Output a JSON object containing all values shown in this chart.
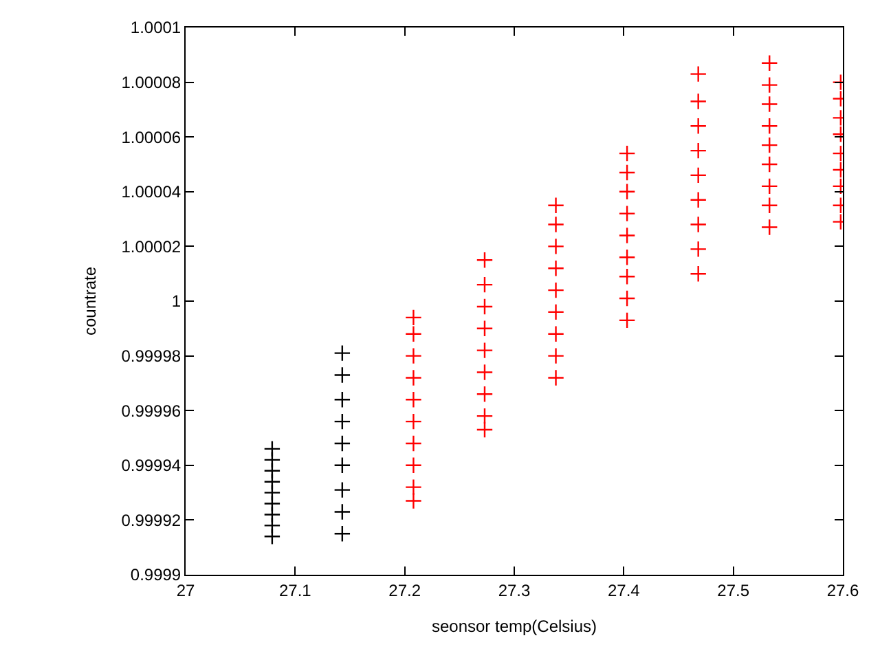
{
  "chart_data": {
    "type": "scatter",
    "xlabel": "seonsor temp(Celsius)",
    "ylabel": "countrate",
    "xlim": [
      27,
      27.6
    ],
    "xticks": [
      27,
      27.1,
      27.2,
      27.3,
      27.4,
      27.5,
      27.6
    ],
    "ylim": [
      0.9999,
      1.0001
    ],
    "yticks": [
      0.9999,
      0.99992,
      0.99994,
      0.99996,
      0.99998,
      1,
      1.00002,
      1.00004,
      1.00006,
      1.00008,
      1.0001
    ],
    "marker": "cross",
    "series": [
      {
        "color": "#000000",
        "x": [
          27.079,
          27.079,
          27.079,
          27.079,
          27.079,
          27.079,
          27.079,
          27.079,
          27.079,
          27.143,
          27.143,
          27.143,
          27.143,
          27.143,
          27.143,
          27.143,
          27.143,
          27.143
        ],
        "values": [
          0.999914,
          0.999918,
          0.999922,
          0.999926,
          0.99993,
          0.999934,
          0.999938,
          0.999942,
          0.999946,
          0.999915,
          0.999923,
          0.999931,
          0.99994,
          0.999948,
          0.999956,
          0.999964,
          0.999973,
          0.999981
        ]
      },
      {
        "color": "#ff0000",
        "x": [
          27.208,
          27.208,
          27.208,
          27.208,
          27.208,
          27.208,
          27.208,
          27.208,
          27.208,
          27.208,
          27.273,
          27.273,
          27.273,
          27.273,
          27.273,
          27.273,
          27.273,
          27.273,
          27.273,
          27.338,
          27.338,
          27.338,
          27.338,
          27.338,
          27.338,
          27.338,
          27.338,
          27.338,
          27.403,
          27.403,
          27.403,
          27.403,
          27.403,
          27.403,
          27.403,
          27.403,
          27.403,
          27.468,
          27.468,
          27.468,
          27.468,
          27.468,
          27.468,
          27.468,
          27.468,
          27.468,
          27.533,
          27.533,
          27.533,
          27.533,
          27.533,
          27.533,
          27.533,
          27.533,
          27.533,
          27.598,
          27.598,
          27.598,
          27.598,
          27.598,
          27.598,
          27.598,
          27.598,
          27.598
        ],
        "values": [
          0.999927,
          0.999932,
          0.99994,
          0.999948,
          0.999956,
          0.999964,
          0.999972,
          0.99998,
          0.999988,
          0.999994,
          0.999953,
          0.999958,
          0.999966,
          0.999974,
          0.999982,
          0.99999,
          0.999998,
          1.000006,
          1.000015,
          0.999972,
          0.99998,
          0.999988,
          0.999996,
          1.000004,
          1.000012,
          1.00002,
          1.000028,
          1.000035,
          0.999993,
          1.000001,
          1.000009,
          1.000016,
          1.000024,
          1.000032,
          1.00004,
          1.000047,
          1.000054,
          1.00001,
          1.000019,
          1.000028,
          1.000037,
          1.000046,
          1.000055,
          1.000064,
          1.000073,
          1.000083,
          1.000027,
          1.000035,
          1.000042,
          1.00005,
          1.000057,
          1.000064,
          1.000072,
          1.000079,
          1.000087,
          1.000029,
          1.000035,
          1.000042,
          1.000048,
          1.000054,
          1.000061,
          1.000067,
          1.000074,
          1.00008
        ]
      }
    ]
  }
}
